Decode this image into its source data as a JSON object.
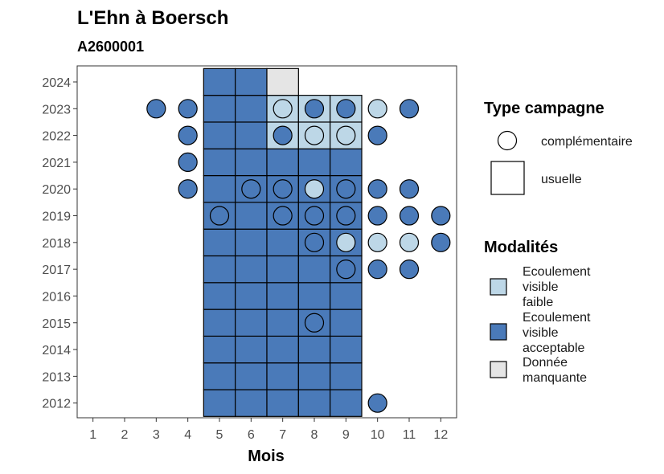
{
  "chart_data": {
    "type": "heatmap",
    "title": "L'Ehn à Boersch",
    "subtitle": "A2600001",
    "xlabel": "Mois",
    "ylabel": "",
    "x_ticks": [
      1,
      2,
      3,
      4,
      5,
      6,
      7,
      8,
      9,
      10,
      11,
      12
    ],
    "y_ticks": [
      2012,
      2013,
      2014,
      2015,
      2016,
      2017,
      2018,
      2019,
      2020,
      2021,
      2022,
      2023,
      2024
    ],
    "xlim": [
      0.5,
      12.5
    ],
    "ylim": [
      2011.45,
      2024.6
    ],
    "colors": {
      "Ecoulement visible faible": "#bdd7e7",
      "Ecoulement visible acceptable": "#4a7ab9",
      "Donnée manquante": "#e5e5e5"
    },
    "usuelle": [
      {
        "month": 5,
        "year": 2012,
        "cat": "Ecoulement visible acceptable"
      },
      {
        "month": 6,
        "year": 2012,
        "cat": "Ecoulement visible acceptable"
      },
      {
        "month": 7,
        "year": 2012,
        "cat": "Ecoulement visible acceptable"
      },
      {
        "month": 8,
        "year": 2012,
        "cat": "Ecoulement visible acceptable"
      },
      {
        "month": 9,
        "year": 2012,
        "cat": "Ecoulement visible acceptable"
      },
      {
        "month": 5,
        "year": 2013,
        "cat": "Ecoulement visible acceptable"
      },
      {
        "month": 6,
        "year": 2013,
        "cat": "Ecoulement visible acceptable"
      },
      {
        "month": 7,
        "year": 2013,
        "cat": "Ecoulement visible acceptable"
      },
      {
        "month": 8,
        "year": 2013,
        "cat": "Ecoulement visible acceptable"
      },
      {
        "month": 9,
        "year": 2013,
        "cat": "Ecoulement visible acceptable"
      },
      {
        "month": 5,
        "year": 2014,
        "cat": "Ecoulement visible acceptable"
      },
      {
        "month": 6,
        "year": 2014,
        "cat": "Ecoulement visible acceptable"
      },
      {
        "month": 7,
        "year": 2014,
        "cat": "Ecoulement visible acceptable"
      },
      {
        "month": 8,
        "year": 2014,
        "cat": "Ecoulement visible acceptable"
      },
      {
        "month": 9,
        "year": 2014,
        "cat": "Ecoulement visible acceptable"
      },
      {
        "month": 5,
        "year": 2015,
        "cat": "Ecoulement visible acceptable"
      },
      {
        "month": 6,
        "year": 2015,
        "cat": "Ecoulement visible acceptable"
      },
      {
        "month": 7,
        "year": 2015,
        "cat": "Ecoulement visible acceptable"
      },
      {
        "month": 8,
        "year": 2015,
        "cat": "Ecoulement visible acceptable"
      },
      {
        "month": 9,
        "year": 2015,
        "cat": "Ecoulement visible acceptable"
      },
      {
        "month": 5,
        "year": 2016,
        "cat": "Ecoulement visible acceptable"
      },
      {
        "month": 6,
        "year": 2016,
        "cat": "Ecoulement visible acceptable"
      },
      {
        "month": 7,
        "year": 2016,
        "cat": "Ecoulement visible acceptable"
      },
      {
        "month": 8,
        "year": 2016,
        "cat": "Ecoulement visible acceptable"
      },
      {
        "month": 9,
        "year": 2016,
        "cat": "Ecoulement visible acceptable"
      },
      {
        "month": 5,
        "year": 2017,
        "cat": "Ecoulement visible acceptable"
      },
      {
        "month": 6,
        "year": 2017,
        "cat": "Ecoulement visible acceptable"
      },
      {
        "month": 7,
        "year": 2017,
        "cat": "Ecoulement visible acceptable"
      },
      {
        "month": 8,
        "year": 2017,
        "cat": "Ecoulement visible acceptable"
      },
      {
        "month": 9,
        "year": 2017,
        "cat": "Ecoulement visible acceptable"
      },
      {
        "month": 5,
        "year": 2018,
        "cat": "Ecoulement visible acceptable"
      },
      {
        "month": 6,
        "year": 2018,
        "cat": "Ecoulement visible acceptable"
      },
      {
        "month": 7,
        "year": 2018,
        "cat": "Ecoulement visible acceptable"
      },
      {
        "month": 8,
        "year": 2018,
        "cat": "Ecoulement visible acceptable"
      },
      {
        "month": 9,
        "year": 2018,
        "cat": "Ecoulement visible acceptable"
      },
      {
        "month": 5,
        "year": 2019,
        "cat": "Ecoulement visible acceptable"
      },
      {
        "month": 6,
        "year": 2019,
        "cat": "Ecoulement visible acceptable"
      },
      {
        "month": 7,
        "year": 2019,
        "cat": "Ecoulement visible acceptable"
      },
      {
        "month": 8,
        "year": 2019,
        "cat": "Ecoulement visible acceptable"
      },
      {
        "month": 9,
        "year": 2019,
        "cat": "Ecoulement visible acceptable"
      },
      {
        "month": 5,
        "year": 2020,
        "cat": "Ecoulement visible acceptable"
      },
      {
        "month": 6,
        "year": 2020,
        "cat": "Ecoulement visible acceptable"
      },
      {
        "month": 7,
        "year": 2020,
        "cat": "Ecoulement visible acceptable"
      },
      {
        "month": 8,
        "year": 2020,
        "cat": "Ecoulement visible acceptable"
      },
      {
        "month": 9,
        "year": 2020,
        "cat": "Ecoulement visible acceptable"
      },
      {
        "month": 5,
        "year": 2021,
        "cat": "Ecoulement visible acceptable"
      },
      {
        "month": 6,
        "year": 2021,
        "cat": "Ecoulement visible acceptable"
      },
      {
        "month": 7,
        "year": 2021,
        "cat": "Ecoulement visible acceptable"
      },
      {
        "month": 8,
        "year": 2021,
        "cat": "Ecoulement visible acceptable"
      },
      {
        "month": 9,
        "year": 2021,
        "cat": "Ecoulement visible acceptable"
      },
      {
        "month": 5,
        "year": 2022,
        "cat": "Ecoulement visible acceptable"
      },
      {
        "month": 6,
        "year": 2022,
        "cat": "Ecoulement visible acceptable"
      },
      {
        "month": 7,
        "year": 2022,
        "cat": "Ecoulement visible faible"
      },
      {
        "month": 8,
        "year": 2022,
        "cat": "Ecoulement visible faible"
      },
      {
        "month": 9,
        "year": 2022,
        "cat": "Ecoulement visible faible"
      },
      {
        "month": 5,
        "year": 2023,
        "cat": "Ecoulement visible acceptable"
      },
      {
        "month": 6,
        "year": 2023,
        "cat": "Ecoulement visible acceptable"
      },
      {
        "month": 7,
        "year": 2023,
        "cat": "Ecoulement visible faible"
      },
      {
        "month": 8,
        "year": 2023,
        "cat": "Ecoulement visible faible"
      },
      {
        "month": 9,
        "year": 2023,
        "cat": "Ecoulement visible faible"
      },
      {
        "month": 5,
        "year": 2024,
        "cat": "Ecoulement visible acceptable"
      },
      {
        "month": 6,
        "year": 2024,
        "cat": "Ecoulement visible acceptable"
      },
      {
        "month": 7,
        "year": 2024,
        "cat": "Donnée manquante"
      }
    ],
    "complementaire": [
      {
        "month": 10,
        "year": 2012,
        "cat": "Ecoulement visible acceptable"
      },
      {
        "month": 8,
        "year": 2015,
        "cat": "Ecoulement visible acceptable"
      },
      {
        "month": 9,
        "year": 2017,
        "cat": "Ecoulement visible acceptable"
      },
      {
        "month": 10,
        "year": 2017,
        "cat": "Ecoulement visible acceptable"
      },
      {
        "month": 11,
        "year": 2017,
        "cat": "Ecoulement visible acceptable"
      },
      {
        "month": 8,
        "year": 2018,
        "cat": "Ecoulement visible acceptable"
      },
      {
        "month": 9,
        "year": 2018,
        "cat": "Ecoulement visible faible"
      },
      {
        "month": 10,
        "year": 2018,
        "cat": "Ecoulement visible faible"
      },
      {
        "month": 11,
        "year": 2018,
        "cat": "Ecoulement visible faible"
      },
      {
        "month": 12,
        "year": 2018,
        "cat": "Ecoulement visible acceptable"
      },
      {
        "month": 5,
        "year": 2019,
        "cat": "Ecoulement visible acceptable"
      },
      {
        "month": 7,
        "year": 2019,
        "cat": "Ecoulement visible acceptable"
      },
      {
        "month": 8,
        "year": 2019,
        "cat": "Ecoulement visible acceptable"
      },
      {
        "month": 9,
        "year": 2019,
        "cat": "Ecoulement visible acceptable"
      },
      {
        "month": 10,
        "year": 2019,
        "cat": "Ecoulement visible acceptable"
      },
      {
        "month": 11,
        "year": 2019,
        "cat": "Ecoulement visible acceptable"
      },
      {
        "month": 12,
        "year": 2019,
        "cat": "Ecoulement visible acceptable"
      },
      {
        "month": 4,
        "year": 2020,
        "cat": "Ecoulement visible acceptable"
      },
      {
        "month": 6,
        "year": 2020,
        "cat": "Ecoulement visible acceptable"
      },
      {
        "month": 7,
        "year": 2020,
        "cat": "Ecoulement visible acceptable"
      },
      {
        "month": 8,
        "year": 2020,
        "cat": "Ecoulement visible faible"
      },
      {
        "month": 9,
        "year": 2020,
        "cat": "Ecoulement visible acceptable"
      },
      {
        "month": 10,
        "year": 2020,
        "cat": "Ecoulement visible acceptable"
      },
      {
        "month": 11,
        "year": 2020,
        "cat": "Ecoulement visible acceptable"
      },
      {
        "month": 4,
        "year": 2021,
        "cat": "Ecoulement visible acceptable"
      },
      {
        "month": 4,
        "year": 2022,
        "cat": "Ecoulement visible acceptable"
      },
      {
        "month": 7,
        "year": 2022,
        "cat": "Ecoulement visible acceptable"
      },
      {
        "month": 8,
        "year": 2022,
        "cat": "Ecoulement visible faible"
      },
      {
        "month": 9,
        "year": 2022,
        "cat": "Ecoulement visible faible"
      },
      {
        "month": 10,
        "year": 2022,
        "cat": "Ecoulement visible acceptable"
      },
      {
        "month": 3,
        "year": 2023,
        "cat": "Ecoulement visible acceptable"
      },
      {
        "month": 4,
        "year": 2023,
        "cat": "Ecoulement visible acceptable"
      },
      {
        "month": 7,
        "year": 2023,
        "cat": "Ecoulement visible faible"
      },
      {
        "month": 8,
        "year": 2023,
        "cat": "Ecoulement visible acceptable"
      },
      {
        "month": 9,
        "year": 2023,
        "cat": "Ecoulement visible acceptable"
      },
      {
        "month": 10,
        "year": 2023,
        "cat": "Ecoulement visible faible"
      },
      {
        "month": 11,
        "year": 2023,
        "cat": "Ecoulement visible acceptable"
      }
    ],
    "legend": {
      "type_title": "Type campagne",
      "type_items": [
        "complémentaire",
        "usuelle"
      ],
      "modal_title": "Modalités",
      "modal_items": [
        {
          "lines": [
            "Ecoulement",
            "visible",
            "faible"
          ],
          "cat": "Ecoulement visible faible"
        },
        {
          "lines": [
            "Ecoulement",
            "visible",
            "acceptable"
          ],
          "cat": "Ecoulement visible acceptable"
        },
        {
          "lines": [
            "Donnée",
            "manquante"
          ],
          "cat": "Donnée manquante"
        }
      ]
    }
  }
}
